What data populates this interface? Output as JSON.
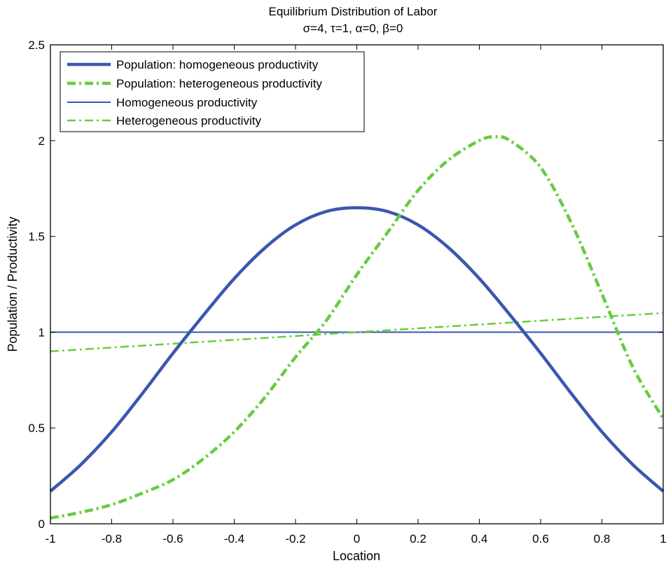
{
  "chart_data": {
    "type": "line",
    "title": "Equilibrium Distribution of Labor",
    "subtitle": "σ=4, τ=1, α=0, β=0",
    "xlabel": "Location",
    "ylabel": "Population / Productivity",
    "xlim": [
      -1,
      1
    ],
    "ylim": [
      0,
      2.5
    ],
    "xticks": [
      "-1",
      "-0.8",
      "-0.6",
      "-0.4",
      "-0.2",
      "0",
      "0.2",
      "0.4",
      "0.6",
      "0.8",
      "1"
    ],
    "yticks": [
      "0",
      "0.5",
      "1",
      "1.5",
      "2",
      "2.5"
    ],
    "grid": false,
    "legend_position": "top-left",
    "series": [
      {
        "name": "Population: homogeneous productivity",
        "color": "#3a57b0",
        "style": "solid-thick",
        "x": [
          -1,
          -0.9,
          -0.8,
          -0.7,
          -0.6,
          -0.5,
          -0.4,
          -0.3,
          -0.2,
          -0.1,
          0,
          0.1,
          0.2,
          0.3,
          0.4,
          0.5,
          0.6,
          0.7,
          0.8,
          0.9,
          1
        ],
        "y": [
          0.17,
          0.31,
          0.48,
          0.68,
          0.89,
          1.09,
          1.28,
          1.44,
          1.56,
          1.63,
          1.65,
          1.63,
          1.56,
          1.44,
          1.28,
          1.09,
          0.89,
          0.68,
          0.48,
          0.31,
          0.17
        ]
      },
      {
        "name": "Population: heterogeneous productivity",
        "color": "#66cc3f",
        "style": "dashdot-thick",
        "x": [
          -1,
          -0.9,
          -0.8,
          -0.7,
          -0.6,
          -0.5,
          -0.4,
          -0.3,
          -0.2,
          -0.1,
          0,
          0.1,
          0.2,
          0.3,
          0.4,
          0.45,
          0.5,
          0.6,
          0.7,
          0.8,
          0.9,
          1
        ],
        "y": [
          0.03,
          0.06,
          0.1,
          0.16,
          0.23,
          0.34,
          0.48,
          0.66,
          0.87,
          1.06,
          1.3,
          1.52,
          1.74,
          1.9,
          2.0,
          2.02,
          2.0,
          1.86,
          1.57,
          1.2,
          0.82,
          0.55
        ]
      },
      {
        "name": "Homogeneous productivity",
        "color": "#3a57b0",
        "style": "solid-thin",
        "x": [
          -1,
          1
        ],
        "y": [
          1,
          1
        ]
      },
      {
        "name": "Heterogeneous productivity",
        "color": "#66cc3f",
        "style": "dashdot-thin",
        "x": [
          -1,
          1
        ],
        "y": [
          0.9,
          1.1
        ]
      }
    ]
  }
}
